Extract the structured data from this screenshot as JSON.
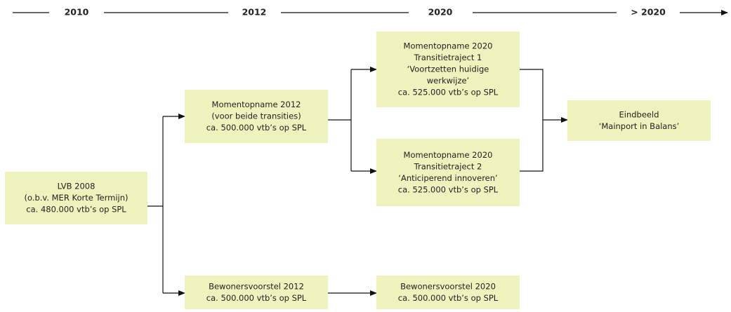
{
  "timeline": [
    "2010",
    "2012",
    "2020",
    "> 2020"
  ],
  "nodes": [
    {
      "lines": [
        "LVB 2008",
        "(o.b.v. MER Korte Termijn)",
        "ca. 480.000 vtb’s op SPL"
      ]
    },
    {
      "lines": [
        "Momentopname 2012",
        "(voor beide transities)",
        "ca. 500.000 vtb’s op SPL"
      ]
    },
    {
      "lines": [
        "Momentopname 2020",
        "Transitietraject 1",
        "‘Voortzetten huidige",
        "werkwijze’",
        "ca. 525.000 vtb’s op SPL"
      ]
    },
    {
      "lines": [
        "Momentopname 2020",
        "Transitietraject 2",
        "‘Anticiperend innoveren’",
        "ca. 525.000 vtb’s op SPL"
      ]
    },
    {
      "lines": [
        "Eindbeeld",
        "‘Mainport in Balans’"
      ]
    },
    {
      "lines": [
        "Bewonersvoorstel 2012",
        "ca. 500.000 vtb’s op SPL"
      ]
    },
    {
      "lines": [
        "Bewonersvoorstel 2020",
        "ca. 500.000 vtb’s op SPL"
      ]
    }
  ]
}
